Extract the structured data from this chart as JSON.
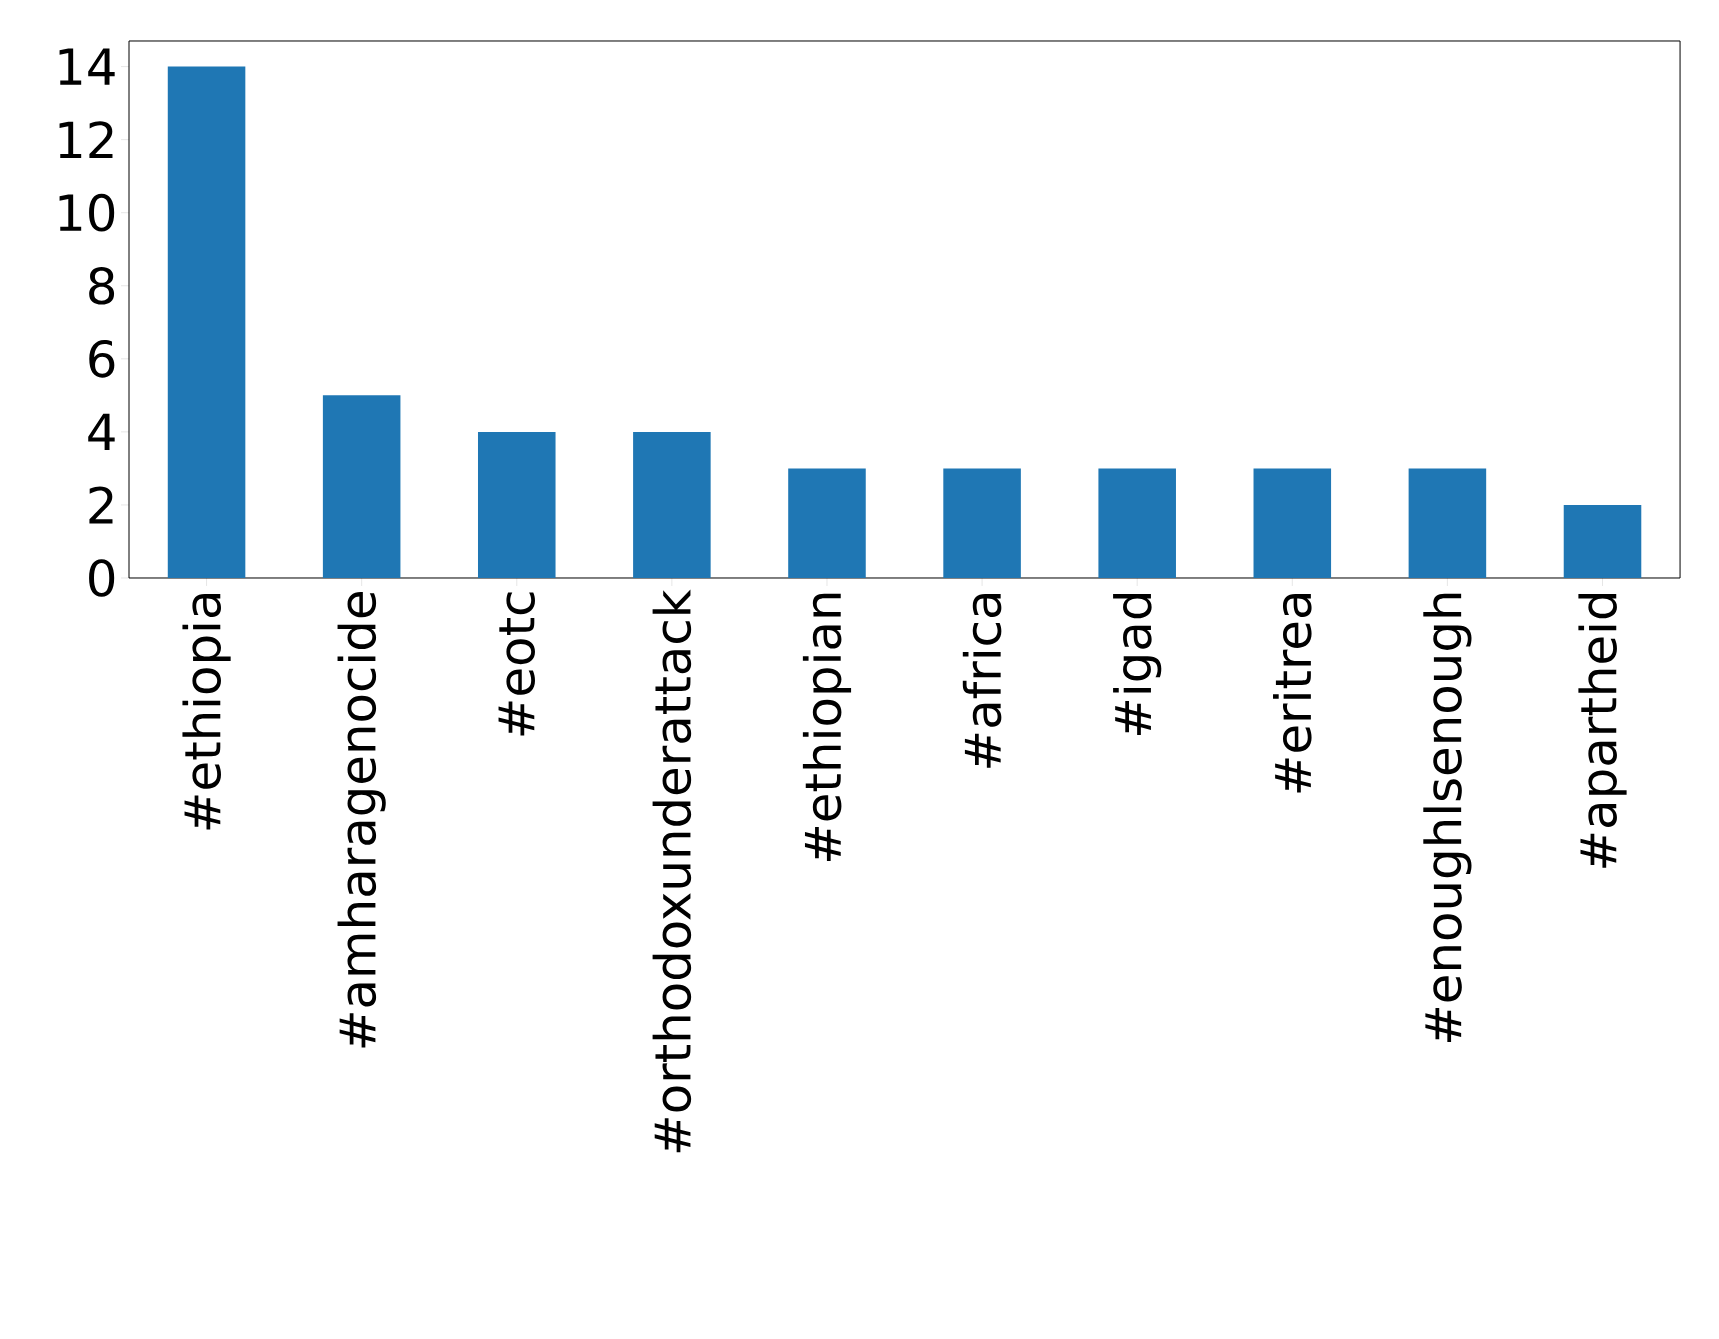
{
  "chart_data": {
    "type": "bar",
    "categories": [
      "#ethiopia",
      "#amharagenocide",
      "#eotc",
      "#orthodoxunderattack",
      "#ethiopian",
      "#africa",
      "#igad",
      "#eritrea",
      "#enoughlsenough",
      "#apartheid"
    ],
    "values": [
      14,
      5,
      4,
      4,
      3,
      3,
      3,
      3,
      3,
      2
    ],
    "color": "#1f77b4",
    "ylim": [
      0,
      14.7
    ],
    "yticks": [
      0,
      2,
      4,
      6,
      8,
      10,
      12,
      14
    ]
  }
}
